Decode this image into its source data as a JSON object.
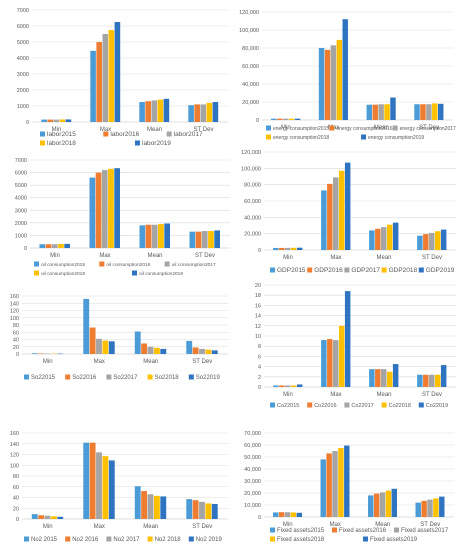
{
  "chart_data": [
    {
      "type": "bar",
      "categories": [
        "Min",
        "Max",
        "Mean",
        "ST Dev"
      ],
      "ylim": [
        0,
        7000
      ],
      "yticks": [
        0,
        1000,
        2000,
        3000,
        4000,
        5000,
        6000,
        7000
      ],
      "grid": true,
      "legend_position": "bottom",
      "series": [
        {
          "name": "labor2015",
          "values": [
            150,
            4450,
            1250,
            1050
          ]
        },
        {
          "name": "labor2016",
          "values": [
            150,
            5000,
            1300,
            1100
          ]
        },
        {
          "name": "labor2017",
          "values": [
            150,
            5500,
            1350,
            1100
          ]
        },
        {
          "name": "labor2018",
          "values": [
            160,
            5750,
            1400,
            1200
          ]
        },
        {
          "name": "labor2019",
          "values": [
            160,
            6250,
            1450,
            1250
          ]
        }
      ]
    },
    {
      "type": "bar",
      "categories": [
        "Min",
        "Max",
        "Mean",
        "ST Dev"
      ],
      "ylim": [
        0,
        120000
      ],
      "yticks": [
        0,
        20000,
        40000,
        60000,
        80000,
        100000,
        120000
      ],
      "ytick_labels": [
        "0",
        "20,000",
        "40,000",
        "60,000",
        "80,000",
        "100,000",
        "120,000"
      ],
      "grid": true,
      "legend_position": "bottom",
      "series": [
        {
          "name": "energy consumption2015",
          "values": [
            1500,
            80000,
            17000,
            17500
          ]
        },
        {
          "name": "energy consumption2016",
          "values": [
            1500,
            78000,
            17000,
            17500
          ]
        },
        {
          "name": "energy consumption2017",
          "values": [
            1500,
            83000,
            17500,
            17500
          ]
        },
        {
          "name": "energy consumption2018",
          "values": [
            1500,
            89000,
            17500,
            18500
          ]
        },
        {
          "name": "energy consumption2019",
          "values": [
            1500,
            112000,
            25000,
            18000
          ]
        }
      ]
    },
    {
      "type": "bar",
      "categories": [
        "Min",
        "Max",
        "Mean",
        "ST Dev"
      ],
      "ylim": [
        0,
        7000
      ],
      "yticks": [
        0,
        1000,
        2000,
        3000,
        4000,
        5000,
        6000,
        7000
      ],
      "grid": true,
      "legend_position": "bottom",
      "series": [
        {
          "name": "oil consumption2015",
          "values": [
            300,
            5600,
            1800,
            1300
          ]
        },
        {
          "name": "oil consumption2016",
          "values": [
            300,
            6000,
            1850,
            1300
          ]
        },
        {
          "name": "oil consumption2017",
          "values": [
            300,
            6200,
            1850,
            1350
          ]
        },
        {
          "name": "oil consumption2018",
          "values": [
            320,
            6300,
            1900,
            1350
          ]
        },
        {
          "name": "oil consumption2019",
          "values": [
            330,
            6350,
            1950,
            1400
          ]
        }
      ]
    },
    {
      "type": "bar",
      "categories": [
        "Min",
        "Max",
        "Mean",
        "ST Dev"
      ],
      "ylim": [
        0,
        120000
      ],
      "yticks": [
        0,
        20000,
        40000,
        60000,
        80000,
        100000,
        120000
      ],
      "ytick_labels": [
        "0",
        "20,000",
        "40,000",
        "60,000",
        "80,000",
        "100,000",
        "120,000"
      ],
      "grid": true,
      "legend_position": "bottom",
      "series": [
        {
          "name": "GDP2015",
          "values": [
            2500,
            73000,
            24000,
            17500
          ]
        },
        {
          "name": "GDP2016",
          "values": [
            2500,
            81000,
            26000,
            19500
          ]
        },
        {
          "name": "GDP2017",
          "values": [
            2600,
            89000,
            28000,
            21000
          ]
        },
        {
          "name": "GDP2018",
          "values": [
            2700,
            97000,
            31000,
            23000
          ]
        },
        {
          "name": "GDP2019",
          "values": [
            2800,
            107000,
            33500,
            25000
          ]
        }
      ]
    },
    {
      "type": "bar",
      "categories": [
        "Min",
        "Max",
        "Mean",
        "ST Dev"
      ],
      "ylim": [
        0,
        160
      ],
      "yticks": [
        0,
        20,
        40,
        60,
        80,
        100,
        120,
        140,
        160
      ],
      "grid": true,
      "legend_position": "bottom",
      "series": [
        {
          "name": "So22015",
          "values": [
            2,
            152,
            62,
            36
          ]
        },
        {
          "name": "So22016",
          "values": [
            1.5,
            73,
            29,
            18
          ]
        },
        {
          "name": "So22017",
          "values": [
            1,
            42,
            20,
            14
          ]
        },
        {
          "name": "So22018",
          "values": [
            1,
            37,
            17,
            12
          ]
        },
        {
          "name": "So22019",
          "values": [
            1,
            35,
            14,
            10
          ]
        }
      ]
    },
    {
      "type": "bar",
      "categories": [
        "Min",
        "Max",
        "Mean",
        "ST Dev"
      ],
      "ylim": [
        0,
        20
      ],
      "yticks": [
        0,
        2,
        4,
        6,
        8,
        10,
        12,
        14,
        16,
        18,
        20
      ],
      "grid": true,
      "legend_position": "bottom",
      "series": [
        {
          "name": "Co22015",
          "values": [
            0.3,
            9.2,
            3.5,
            2.4
          ]
        },
        {
          "name": "Co22016",
          "values": [
            0.3,
            9.4,
            3.5,
            2.4
          ]
        },
        {
          "name": "Co22017",
          "values": [
            0.3,
            9.2,
            3.5,
            2.4
          ]
        },
        {
          "name": "Co22018",
          "values": [
            0.3,
            12.0,
            3.0,
            2.4
          ]
        },
        {
          "name": "Co22019",
          "values": [
            0.5,
            18.8,
            4.5,
            4.3
          ]
        }
      ]
    },
    {
      "type": "bar",
      "categories": [
        "Min",
        "Max",
        "Mean",
        "ST Dev"
      ],
      "ylim": [
        0,
        160
      ],
      "yticks": [
        0,
        20,
        40,
        60,
        80,
        100,
        120,
        140,
        160
      ],
      "grid": true,
      "legend_position": "bottom",
      "series": [
        {
          "name": "No2 2015",
          "values": [
            9,
            142,
            61,
            37
          ]
        },
        {
          "name": "No2 2016",
          "values": [
            7,
            142,
            52,
            35
          ]
        },
        {
          "name": "No2 2017",
          "values": [
            6,
            124,
            46,
            32
          ]
        },
        {
          "name": "No2 2018",
          "values": [
            5,
            117,
            43,
            29
          ]
        },
        {
          "name": "No2 2019",
          "values": [
            4,
            109,
            42,
            28
          ]
        }
      ]
    },
    {
      "type": "bar",
      "categories": [
        "Min",
        "Max",
        "Mean",
        "ST Dev"
      ],
      "ylim": [
        0,
        70000
      ],
      "yticks": [
        0,
        10000,
        20000,
        30000,
        40000,
        50000,
        60000,
        70000
      ],
      "ytick_labels": [
        "0",
        "10,000",
        "20,000",
        "30,000",
        "40,000",
        "50,000",
        "60,000",
        "70,000"
      ],
      "grid": true,
      "legend_position": "bottom",
      "series": [
        {
          "name": "Fixed assets2015",
          "values": [
            3800,
            48000,
            18000,
            12000
          ]
        },
        {
          "name": "Fixed assets2016",
          "values": [
            4000,
            53000,
            19500,
            13500
          ]
        },
        {
          "name": "Fixed assets2017",
          "values": [
            4000,
            55000,
            20500,
            14500
          ]
        },
        {
          "name": "Fixed assets2018",
          "values": [
            3800,
            57500,
            22000,
            15500
          ]
        },
        {
          "name": "Fixed assets2019",
          "values": [
            3500,
            59500,
            23500,
            17000
          ]
        }
      ]
    }
  ],
  "colors": {
    "series": [
      "#4a9bd6",
      "#ee7d31",
      "#a5a5a5",
      "#ffc000",
      "#2e74c0"
    ],
    "grid": "#d9d9d9",
    "axis": "#bfbfbf",
    "text": "#595959"
  }
}
